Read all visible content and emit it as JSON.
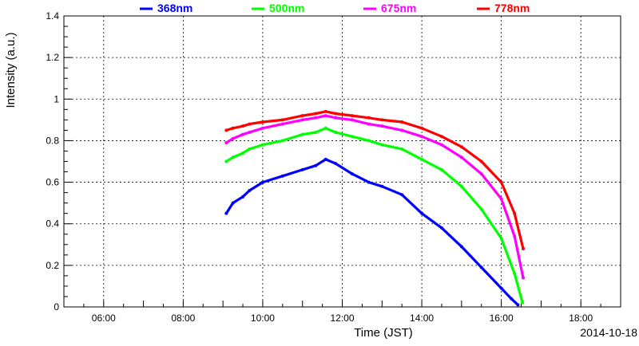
{
  "chart_data": {
    "type": "scatter",
    "xlabel": "Time (JST)",
    "ylabel": "Intensity (a.u.)",
    "date": "2014-10-18",
    "xlim": [
      "05:00",
      "19:00"
    ],
    "ylim": [
      0,
      1.4
    ],
    "x_ticks": [
      "06:00",
      "08:00",
      "10:00",
      "12:00",
      "14:00",
      "16:00",
      "18:00"
    ],
    "y_ticks": [
      "0",
      "0.2",
      "0.4",
      "0.6",
      "0.8",
      "1",
      "1.2",
      "1.4"
    ],
    "grid": true,
    "legend_position": "top",
    "series": [
      {
        "name": "368nm",
        "color": "#0000ff",
        "x": [
          "09:05",
          "09:15",
          "09:30",
          "09:40",
          "10:00",
          "10:30",
          "11:00",
          "11:20",
          "11:35",
          "11:50",
          "12:15",
          "12:40",
          "13:00",
          "13:30",
          "14:00",
          "14:30",
          "15:00",
          "15:30",
          "16:00",
          "16:15",
          "16:25"
        ],
        "y": [
          0.45,
          0.5,
          0.53,
          0.56,
          0.6,
          0.63,
          0.66,
          0.68,
          0.71,
          0.69,
          0.64,
          0.6,
          0.58,
          0.54,
          0.45,
          0.38,
          0.29,
          0.19,
          0.09,
          0.04,
          0.01
        ]
      },
      {
        "name": "500nm",
        "color": "#00ff00",
        "x": [
          "09:05",
          "09:15",
          "09:30",
          "09:40",
          "10:00",
          "10:30",
          "11:00",
          "11:20",
          "11:35",
          "11:50",
          "12:15",
          "12:40",
          "13:00",
          "13:30",
          "14:00",
          "14:30",
          "15:00",
          "15:30",
          "16:00",
          "16:20",
          "16:32"
        ],
        "y": [
          0.7,
          0.72,
          0.74,
          0.76,
          0.78,
          0.8,
          0.83,
          0.84,
          0.86,
          0.84,
          0.82,
          0.8,
          0.78,
          0.76,
          0.71,
          0.66,
          0.58,
          0.47,
          0.33,
          0.16,
          0.02
        ]
      },
      {
        "name": "675nm",
        "color": "#ff00ff",
        "x": [
          "09:05",
          "09:15",
          "09:30",
          "09:40",
          "10:00",
          "10:30",
          "11:00",
          "11:20",
          "11:35",
          "11:50",
          "12:15",
          "12:40",
          "13:00",
          "13:30",
          "14:00",
          "14:30",
          "15:00",
          "15:30",
          "16:00",
          "16:20",
          "16:33"
        ],
        "y": [
          0.79,
          0.81,
          0.83,
          0.84,
          0.86,
          0.88,
          0.9,
          0.91,
          0.92,
          0.91,
          0.9,
          0.88,
          0.87,
          0.85,
          0.82,
          0.78,
          0.72,
          0.64,
          0.52,
          0.34,
          0.14
        ]
      },
      {
        "name": "778nm",
        "color": "#ff0000",
        "x": [
          "09:05",
          "09:15",
          "09:30",
          "09:40",
          "10:00",
          "10:30",
          "11:00",
          "11:20",
          "11:35",
          "11:50",
          "12:15",
          "12:40",
          "13:00",
          "13:30",
          "14:00",
          "14:30",
          "15:00",
          "15:30",
          "16:00",
          "16:20",
          "16:33"
        ],
        "y": [
          0.85,
          0.86,
          0.87,
          0.88,
          0.89,
          0.9,
          0.92,
          0.93,
          0.94,
          0.93,
          0.92,
          0.91,
          0.9,
          0.89,
          0.86,
          0.82,
          0.77,
          0.7,
          0.6,
          0.45,
          0.28
        ]
      }
    ]
  }
}
